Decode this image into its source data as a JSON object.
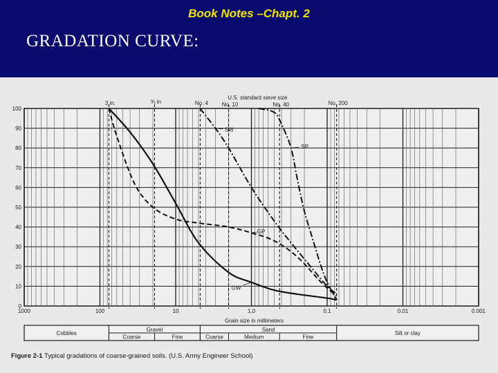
{
  "slide": {
    "title": "Book Notes –Chapt. 2",
    "heading": "GRADATION CURVE:"
  },
  "colors": {
    "header_bg": "#0a0a6e",
    "title": "#f2e600",
    "heading": "#ffffff",
    "figure_bg": "#e9e9e9",
    "ink": "#1a1a1a"
  },
  "chart_data": {
    "type": "line",
    "title": "Typical gradations of coarse-grained soils. (U.S. Army Engineer School)",
    "figure_label": "Figure 2-1",
    "xlabel": "Grain size in millimeters",
    "ylabel": "",
    "x_scale": "log-reversed",
    "xlim": [
      1000,
      0.001
    ],
    "ylim": [
      0,
      100
    ],
    "x_ticks": [
      "1000",
      "100",
      "10",
      "1.0",
      "0.1",
      "0.01",
      "0.001"
    ],
    "y_ticks": [
      "0",
      "10",
      "20",
      "30",
      "40",
      "50",
      "60",
      "70",
      "80",
      "90",
      "100"
    ],
    "sieve_axis_title": "U.S. standard sieve size",
    "sieves": [
      {
        "label": "3 in.",
        "size": 76.2
      },
      {
        "label": "¾ in",
        "size": 19.0
      },
      {
        "label": "No. 4",
        "size": 4.75
      },
      {
        "label": "No. 10",
        "size": 2.0
      },
      {
        "label": "No. 40",
        "size": 0.425
      },
      {
        "label": "No. 200",
        "size": 0.075
      }
    ],
    "series": [
      {
        "name": "GW",
        "style": "solid",
        "x": [
          76.2,
          40,
          20,
          10,
          5,
          2,
          1,
          0.5,
          0.25,
          0.1,
          0.075
        ],
        "y": [
          100,
          88,
          72,
          52,
          32,
          17,
          12,
          8,
          6,
          4,
          3
        ]
      },
      {
        "name": "GP",
        "style": "dashed",
        "x": [
          76.2,
          60,
          35,
          20,
          10,
          5,
          2,
          1,
          0.5,
          0.25,
          0.12,
          0.075
        ],
        "y": [
          100,
          86,
          62,
          50,
          44,
          42,
          40,
          37,
          33,
          25,
          12,
          5
        ]
      },
      {
        "name": "SW",
        "style": "dash-dot",
        "x": [
          4.75,
          3,
          2,
          1,
          0.5,
          0.3,
          0.15,
          0.1,
          0.075
        ],
        "y": [
          100,
          90,
          80,
          60,
          43,
          32,
          18,
          10,
          6
        ]
      },
      {
        "name": "SP",
        "style": "dash-dot",
        "x": [
          0.8,
          0.5,
          0.4,
          0.3,
          0.25,
          0.2,
          0.15,
          0.12,
          0.1,
          0.075
        ],
        "y": [
          100,
          98,
          92,
          80,
          65,
          48,
          32,
          20,
          12,
          3
        ]
      }
    ],
    "classification": {
      "top_row": [
        {
          "label": "Cobbles",
          "from": 1000,
          "to": 76.2
        },
        {
          "label": "Gravel",
          "from": 76.2,
          "to": 4.75
        },
        {
          "label": "Sand",
          "from": 4.75,
          "to": 0.075
        },
        {
          "label": "Silt or clay",
          "from": 0.075,
          "to": 0.001
        }
      ],
      "bottom_row": [
        {
          "label": "Coarse",
          "from": 76.2,
          "to": 19.0
        },
        {
          "label": "Fine",
          "from": 19.0,
          "to": 4.75
        },
        {
          "label": "Coarse",
          "from": 4.75,
          "to": 2.0
        },
        {
          "label": "Medium",
          "from": 2.0,
          "to": 0.425
        },
        {
          "label": "Fine",
          "from": 0.425,
          "to": 0.075
        }
      ]
    },
    "grid": true
  }
}
